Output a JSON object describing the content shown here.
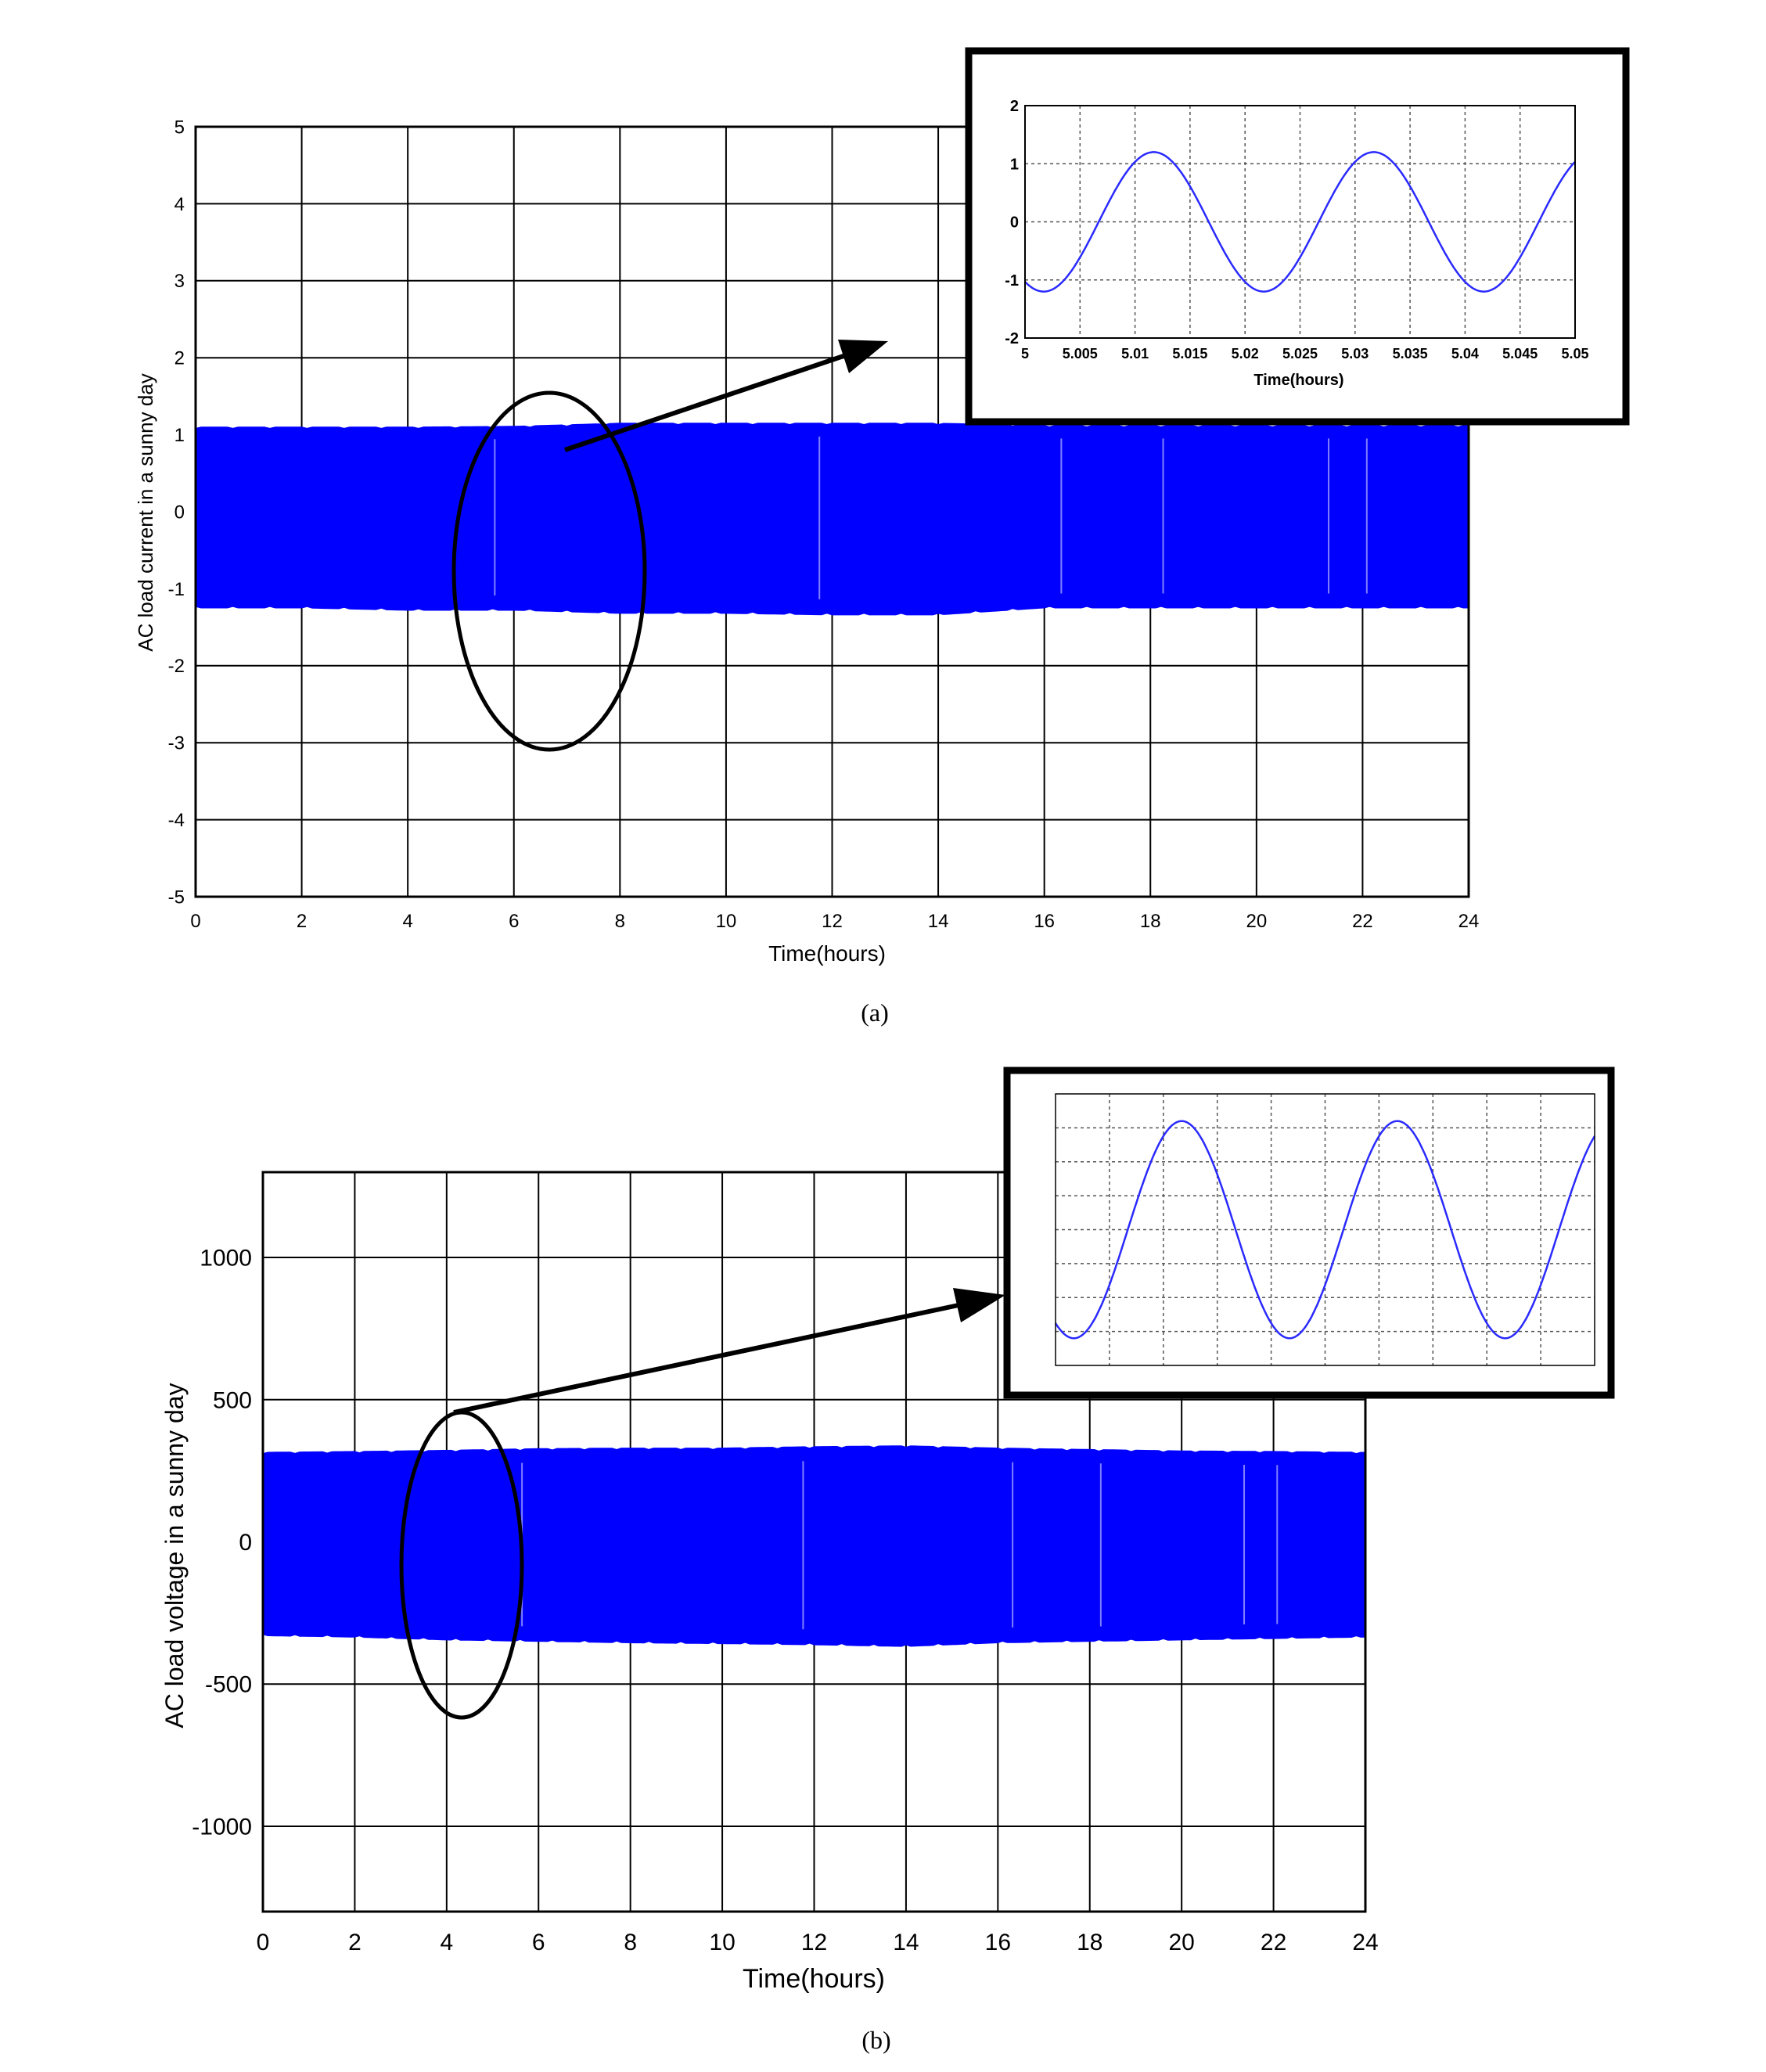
{
  "chart_data": [
    {
      "id": "a",
      "type": "line",
      "caption": "(a)",
      "ylabel": "AC load current in a sunny day",
      "xlabel": "Time(hours)",
      "xlim": [
        0,
        24
      ],
      "ylim": [
        -5,
        5
      ],
      "xticks": [
        0,
        2,
        4,
        6,
        8,
        10,
        12,
        14,
        16,
        18,
        20,
        22,
        24
      ],
      "yticks": [
        -5,
        -4,
        -3,
        -2,
        -1,
        0,
        1,
        2,
        3,
        4,
        5
      ],
      "grid": true,
      "color": "#0000ff",
      "envelope": {
        "x": [
          0,
          2,
          4,
          6,
          8,
          10,
          12,
          14,
          16,
          18,
          20,
          22,
          24
        ],
        "upper": [
          1.1,
          1.1,
          1.1,
          1.11,
          1.15,
          1.15,
          1.15,
          1.15,
          1.12,
          1.12,
          1.12,
          1.12,
          1.12
        ],
        "lower": [
          -1.25,
          -1.25,
          -1.28,
          -1.28,
          -1.32,
          -1.32,
          -1.34,
          -1.34,
          -1.25,
          -1.25,
          -1.25,
          -1.25,
          -1.25
        ]
      },
      "inset": {
        "xlabel": "Time(hours)",
        "xlim": [
          5,
          5.05
        ],
        "ylim": [
          -2,
          2
        ],
        "xticks": [
          5,
          5.005,
          5.01,
          5.015,
          5.02,
          5.025,
          5.03,
          5.035,
          5.04,
          5.045,
          5.05
        ],
        "xtick_labels": [
          "5",
          "5.005",
          "5.01",
          "5.015",
          "5.02",
          "5.025",
          "5.03",
          "5.035",
          "5.04",
          "5.045",
          "5.05"
        ],
        "yticks": [
          -2,
          -1,
          0,
          1,
          2
        ],
        "grid": "dotted",
        "amplitude": 1.2,
        "period": 0.02,
        "phase_x0": 5.0017
      }
    },
    {
      "id": "b",
      "type": "line",
      "caption": "(b)",
      "ylabel": "AC load voltage in a sunny day",
      "xlabel": "Time(hours)",
      "xlim": [
        0,
        24
      ],
      "ylim": [
        -1300,
        1300
      ],
      "xticks": [
        0,
        2,
        4,
        6,
        8,
        10,
        12,
        14,
        16,
        18,
        20,
        22,
        24
      ],
      "yticks": [
        -1000,
        -500,
        0,
        500,
        1000
      ],
      "grid": true,
      "color": "#0000ff",
      "envelope": {
        "x": [
          0,
          2,
          4,
          6,
          8,
          10,
          12,
          14,
          16,
          18,
          20,
          22,
          24
        ],
        "upper": [
          315,
          318,
          322,
          328,
          330,
          330,
          335,
          338,
          330,
          325,
          320,
          318,
          315
        ],
        "lower": [
          -330,
          -335,
          -345,
          -350,
          -355,
          -358,
          -362,
          -368,
          -355,
          -350,
          -345,
          -340,
          -335
        ]
      },
      "inset": {
        "xlim": [
          5,
          5.05
        ],
        "ylim": [
          -1,
          1
        ],
        "amplitude": 0.8,
        "period": 0.02,
        "phase_x0": 5.0017
      }
    }
  ]
}
